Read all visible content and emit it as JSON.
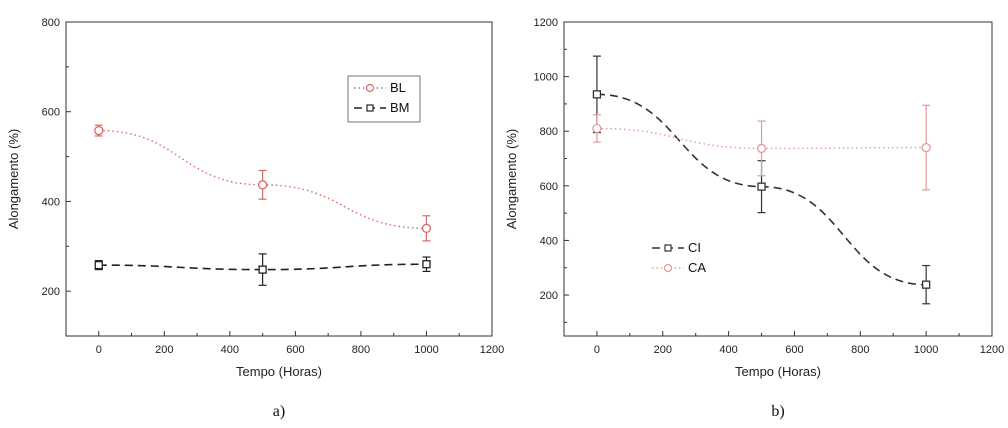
{
  "chart_data": [
    {
      "type": "line",
      "panel_label": "a)",
      "xlabel": "Tempo (Horas)",
      "ylabel": "Alongamento (%)",
      "xlim": [
        -100,
        1200
      ],
      "ylim": [
        100,
        800
      ],
      "xticks": [
        0,
        200,
        400,
        600,
        800,
        1000,
        1200
      ],
      "yticks": [
        200,
        400,
        600,
        800
      ],
      "legend_position": "top-right",
      "series": [
        {
          "name": "BL",
          "x": [
            0,
            500,
            1000
          ],
          "y": [
            558,
            437,
            340
          ],
          "err": [
            12,
            32,
            28
          ],
          "color": "#d46a6a",
          "line_style": "dotted",
          "marker": "circle"
        },
        {
          "name": "BM",
          "x": [
            0,
            500,
            1000
          ],
          "y": [
            258,
            248,
            260
          ],
          "err": [
            10,
            35,
            16
          ],
          "color": "#222222",
          "line_style": "dashed",
          "marker": "square"
        }
      ]
    },
    {
      "type": "line",
      "panel_label": "b)",
      "xlabel": "Tempo (Horas)",
      "ylabel": "Alongamento (%)",
      "xlim": [
        -100,
        1200
      ],
      "ylim": [
        50,
        1200
      ],
      "xticks": [
        0,
        200,
        400,
        600,
        800,
        1000,
        1200
      ],
      "yticks": [
        200,
        400,
        600,
        800,
        1000,
        1200
      ],
      "legend_position": "bottom-left",
      "series": [
        {
          "name": "CI",
          "x": [
            0,
            500,
            1000
          ],
          "y": [
            935,
            597,
            238
          ],
          "err": [
            140,
            95,
            70
          ],
          "color": "#333333",
          "line_style": "dashed",
          "marker": "square"
        },
        {
          "name": "CA",
          "x": [
            0,
            500,
            1000
          ],
          "y": [
            810,
            737,
            740
          ],
          "err": [
            50,
            100,
            155
          ],
          "color": "#e29a9a",
          "line_style": "dotted",
          "marker": "circle"
        }
      ]
    }
  ]
}
